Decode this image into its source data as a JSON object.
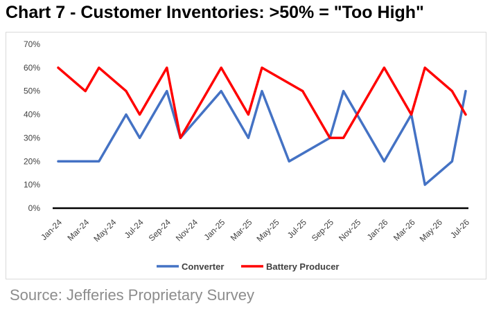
{
  "page": {
    "title": "Chart 7 - Customer Inventories: >50% = \"Too High\"",
    "source": "Source: Jefferies Proprietary Survey"
  },
  "chart_data": {
    "type": "line",
    "x_tick_labels": [
      "Jan-24",
      "Mar-24",
      "May-24",
      "Jul-24",
      "Sep-24",
      "Nov-24",
      "Jan-25",
      "Mar-25",
      "May-25",
      "Jul-25",
      "Sep-25",
      "Nov-25",
      "Jan-26",
      "Mar-26",
      "May-26",
      "Jul-26"
    ],
    "y_tick_labels": [
      "0%",
      "10%",
      "20%",
      "30%",
      "40%",
      "50%",
      "60%",
      "70%"
    ],
    "ylim": [
      0,
      70
    ],
    "grid": false,
    "legend_position": "bottom",
    "series": [
      {
        "name": "Converter",
        "color": "#4472C4",
        "points": [
          {
            "x": "Jan-24",
            "y": 20
          },
          {
            "x": "Mar-24",
            "y": 20
          },
          {
            "x": "Apr-24",
            "y": 20
          },
          {
            "x": "Jun-24",
            "y": 40
          },
          {
            "x": "Jul-24",
            "y": 30
          },
          {
            "x": "Sep-24",
            "y": 50
          },
          {
            "x": "Oct-24",
            "y": 30
          },
          {
            "x": "Jan-25",
            "y": 50
          },
          {
            "x": "Mar-25",
            "y": 30
          },
          {
            "x": "Apr-25",
            "y": 50
          },
          {
            "x": "Jun-25",
            "y": 20
          },
          {
            "x": "Sep-25",
            "y": 30
          },
          {
            "x": "Oct-25",
            "y": 50
          },
          {
            "x": "Jan-26",
            "y": 20
          },
          {
            "x": "Mar-26",
            "y": 40
          },
          {
            "x": "Apr-26",
            "y": 10
          },
          {
            "x": "Jun-26",
            "y": 20
          },
          {
            "x": "Jul-26",
            "y": 50
          }
        ]
      },
      {
        "name": "Battery Producer",
        "color": "#FF0000",
        "points": [
          {
            "x": "Jan-24",
            "y": 60
          },
          {
            "x": "Mar-24",
            "y": 50
          },
          {
            "x": "Apr-24",
            "y": 60
          },
          {
            "x": "Jun-24",
            "y": 50
          },
          {
            "x": "Jul-24",
            "y": 40
          },
          {
            "x": "Sep-24",
            "y": 60
          },
          {
            "x": "Oct-24",
            "y": 30
          },
          {
            "x": "Jan-25",
            "y": 60
          },
          {
            "x": "Mar-25",
            "y": 40
          },
          {
            "x": "Apr-25",
            "y": 60
          },
          {
            "x": "Jul-25",
            "y": 50
          },
          {
            "x": "Sep-25",
            "y": 30
          },
          {
            "x": "Oct-25",
            "y": 30
          },
          {
            "x": "Jan-26",
            "y": 60
          },
          {
            "x": "Mar-26",
            "y": 40
          },
          {
            "x": "Apr-26",
            "y": 60
          },
          {
            "x": "Jun-26",
            "y": 50
          },
          {
            "x": "Jul-26",
            "y": 40
          }
        ]
      }
    ]
  }
}
